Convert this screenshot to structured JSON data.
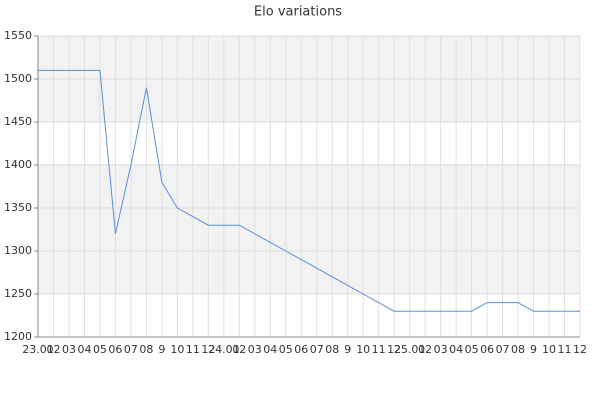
{
  "chart_data": {
    "type": "line",
    "title": "Elo variations",
    "categories": [
      "23.01",
      "02",
      "03",
      "04",
      "05",
      "06",
      "07",
      "08",
      "9",
      "10",
      "11",
      "12",
      "24.01",
      "02",
      "03",
      "04",
      "05",
      "06",
      "07",
      "08",
      "9",
      "10",
      "11",
      "12",
      "25.01",
      "02",
      "03",
      "04",
      "05",
      "06",
      "07",
      "08",
      "9",
      "10",
      "11",
      "12"
    ],
    "series": [
      {
        "name": "Elo",
        "color": "#5b8fd9",
        "values": [
          1510,
          1510,
          1510,
          1510,
          1510,
          1320,
          1400,
          1490,
          1380,
          1350,
          1340,
          1330,
          1330,
          1330,
          1320,
          1310,
          1300,
          1290,
          1280,
          1270,
          1260,
          1250,
          1240,
          1230,
          1230,
          1230,
          1230,
          1230,
          1230,
          1240,
          1240,
          1240,
          1230,
          1230,
          1230,
          1230
        ]
      }
    ],
    "ylim": [
      1200,
      1550
    ],
    "yticks": [
      1200,
      1250,
      1300,
      1350,
      1400,
      1450,
      1500,
      1550
    ],
    "grid": true
  }
}
